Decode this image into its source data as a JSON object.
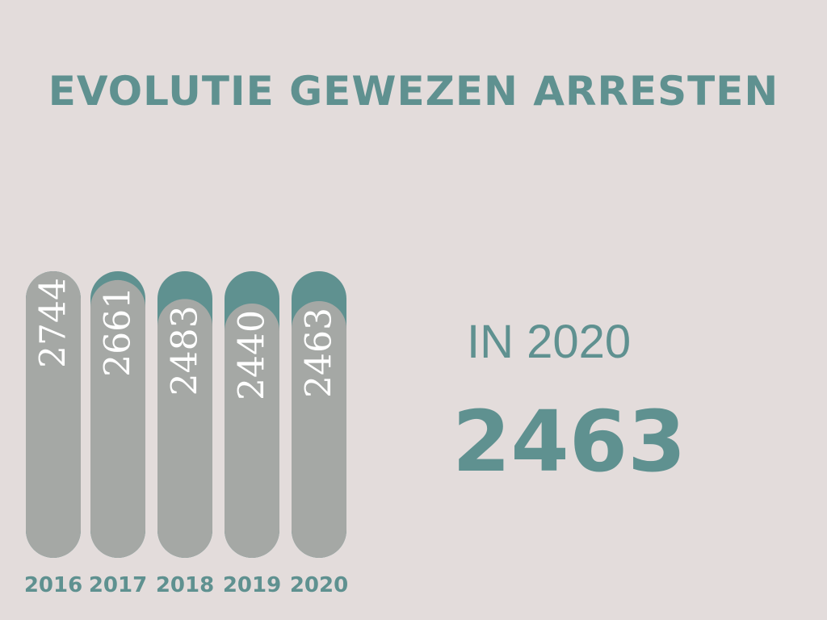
{
  "title": "EVOLUTIE GEWEZEN ARRESTEN",
  "highlight": {
    "caption": "IN 2020",
    "value": "2463"
  },
  "colors": {
    "background": "#e3dcdb",
    "accent": "#5f9190",
    "bar": "#a5a8a5",
    "label": "#ffffff"
  },
  "chart_data": {
    "type": "bar",
    "title": "EVOLUTIE GEWEZEN ARRESTEN",
    "categories": [
      "2016",
      "2017",
      "2018",
      "2019",
      "2020"
    ],
    "values": [
      2744,
      2661,
      2483,
      2440,
      2463
    ],
    "ylim": [
      0,
      2744
    ],
    "grid": false,
    "legend": "none"
  }
}
